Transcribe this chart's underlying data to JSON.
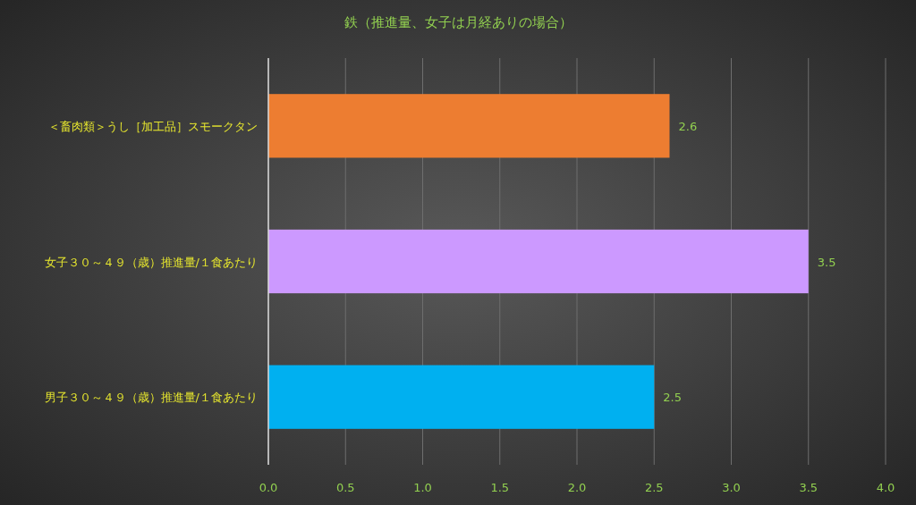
{
  "chart_data": {
    "type": "bar",
    "orientation": "horizontal",
    "title": "鉄（推進量、女子は月経ありの場合）",
    "categories": [
      "＜畜肉類＞うし［加工品］スモークタン",
      "女子３０～４９（歳）推進量/１食あたり",
      "男子３０～４９（歳）推進量/１食あたり"
    ],
    "values": [
      2.6,
      3.5,
      2.5
    ],
    "colors": [
      "#ed7d31",
      "#cc99ff",
      "#00b0f0"
    ],
    "xlim": [
      0,
      4
    ],
    "xticks": [
      {
        "value": 0,
        "label": "0.0"
      },
      {
        "value": 0.5,
        "label": "0.5"
      },
      {
        "value": 1,
        "label": "1.0"
      },
      {
        "value": 1.5,
        "label": "1.5"
      },
      {
        "value": 2,
        "label": "2.0"
      },
      {
        "value": 2.5,
        "label": "2.5"
      },
      {
        "value": 3,
        "label": "3.0"
      },
      {
        "value": 3.5,
        "label": "3.5"
      },
      {
        "value": 4,
        "label": "4.0"
      }
    ],
    "grid": "x",
    "data_labels": true
  }
}
